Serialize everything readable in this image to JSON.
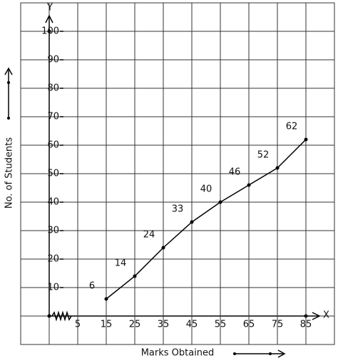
{
  "chart_data": {
    "type": "line",
    "x_label": "X",
    "y_label": "Y",
    "x_title": "Marks Obtained",
    "y_title": "No. of Students",
    "x": [
      15,
      25,
      35,
      45,
      55,
      65,
      75,
      85
    ],
    "series": [
      {
        "color": "#000000",
        "values": [
          6,
          14,
          24,
          33,
          40,
          46,
          52,
          62
        ]
      }
    ],
    "xlim": [
      -15,
      95
    ],
    "xticks": [
      5,
      15,
      25,
      35,
      45,
      55,
      65,
      75,
      85
    ],
    "ylim": [
      -10,
      110
    ],
    "yticks": [
      10,
      20,
      30,
      40,
      50,
      60,
      70,
      80,
      90,
      100
    ],
    "grid": true
  }
}
